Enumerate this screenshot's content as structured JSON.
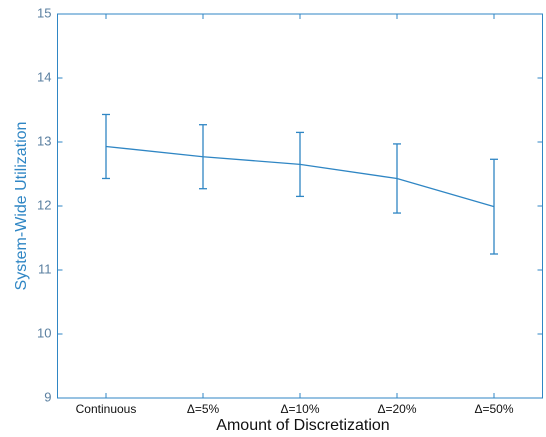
{
  "chart_data": {
    "type": "line",
    "xlabel": "Amount of Discretization",
    "ylabel": "System-Wide Utilization",
    "categories": [
      "Continuous",
      "Δ=5%",
      "Δ=10%",
      "Δ=20%",
      "Δ=50%"
    ],
    "series": [
      {
        "color": "#2f86c4",
        "values": [
          12.93,
          12.77,
          12.65,
          12.43,
          11.99
        ],
        "errors": [
          0.5,
          0.5,
          0.5,
          0.54,
          0.74
        ]
      }
    ],
    "ylim": [
      9,
      15
    ],
    "yticks": [
      9,
      10,
      11,
      12,
      13,
      14,
      15
    ]
  }
}
